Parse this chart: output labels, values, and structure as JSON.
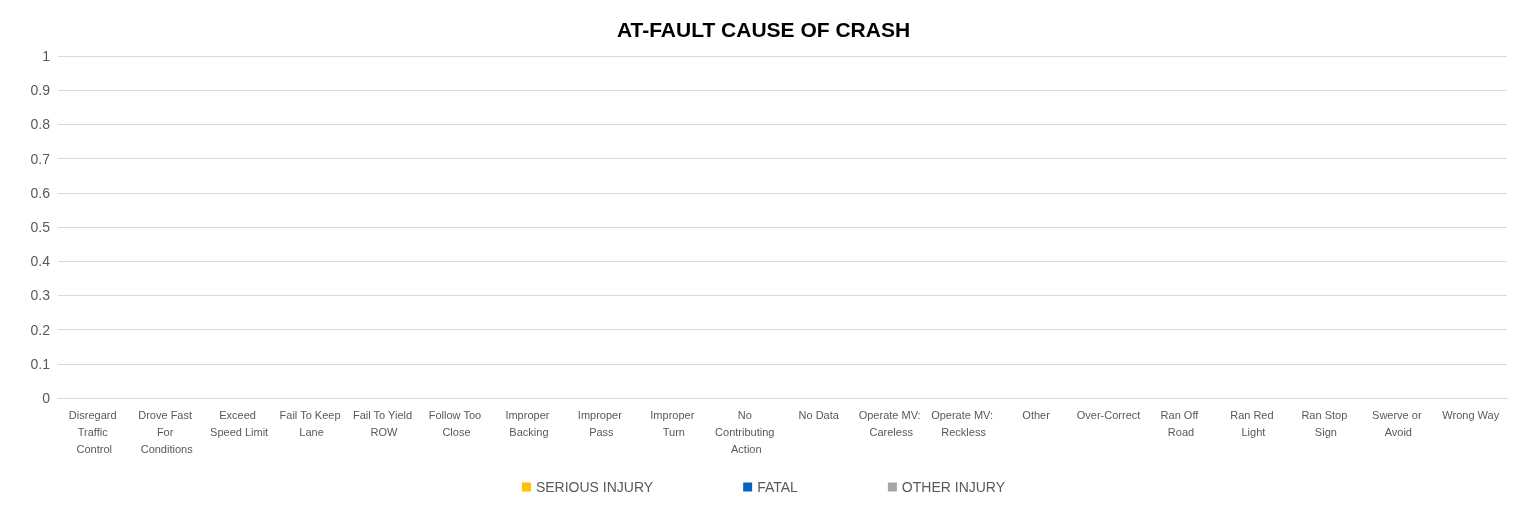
{
  "chart_data": {
    "type": "bar",
    "title": "AT-FAULT CAUSE OF CRASH",
    "categories": [
      "Disregard Traffic Control",
      "Drove Fast For Conditions",
      "Exceed Speed Limit",
      "Fail To Keep Lane",
      "Fail To Yield ROW",
      "Follow Too Close",
      "Improper Backing",
      "Improper Pass",
      "Improper Turn",
      "No Contributing Action",
      "No Data",
      "Operate MV: Careless",
      "Operate MV: Reckless",
      "Other",
      "Over-Correct",
      "Ran Off Road",
      "Ran Red Light",
      "Ran Stop Sign",
      "Swerve or Avoid",
      "Wrong Way"
    ],
    "series": [
      {
        "name": "SERIOUS INJURY",
        "color": "#ffc000",
        "values": [
          0,
          0,
          0,
          0,
          0,
          0,
          0,
          0,
          0,
          0,
          0,
          0,
          0,
          0,
          0,
          0,
          0,
          0,
          0,
          0
        ]
      },
      {
        "name": "FATAL",
        "color": "#0563c1",
        "values": [
          0,
          0,
          0,
          0,
          0,
          0,
          0,
          0,
          0,
          0,
          0,
          0,
          0,
          0,
          0,
          0,
          0,
          0,
          0,
          0
        ]
      },
      {
        "name": "OTHER INJURY",
        "color": "#a5a5a5",
        "values": [
          0,
          0,
          0,
          0,
          0,
          0,
          0,
          0,
          0,
          0,
          0,
          0,
          0,
          0,
          0,
          0,
          0,
          0,
          0,
          0
        ]
      }
    ],
    "ylim": [
      0,
      1
    ],
    "yticks": [
      0,
      0.1,
      0.2,
      0.3,
      0.4,
      0.5,
      0.6,
      0.7,
      0.8,
      0.9,
      1
    ],
    "grid": "y",
    "legend": "bottom"
  }
}
